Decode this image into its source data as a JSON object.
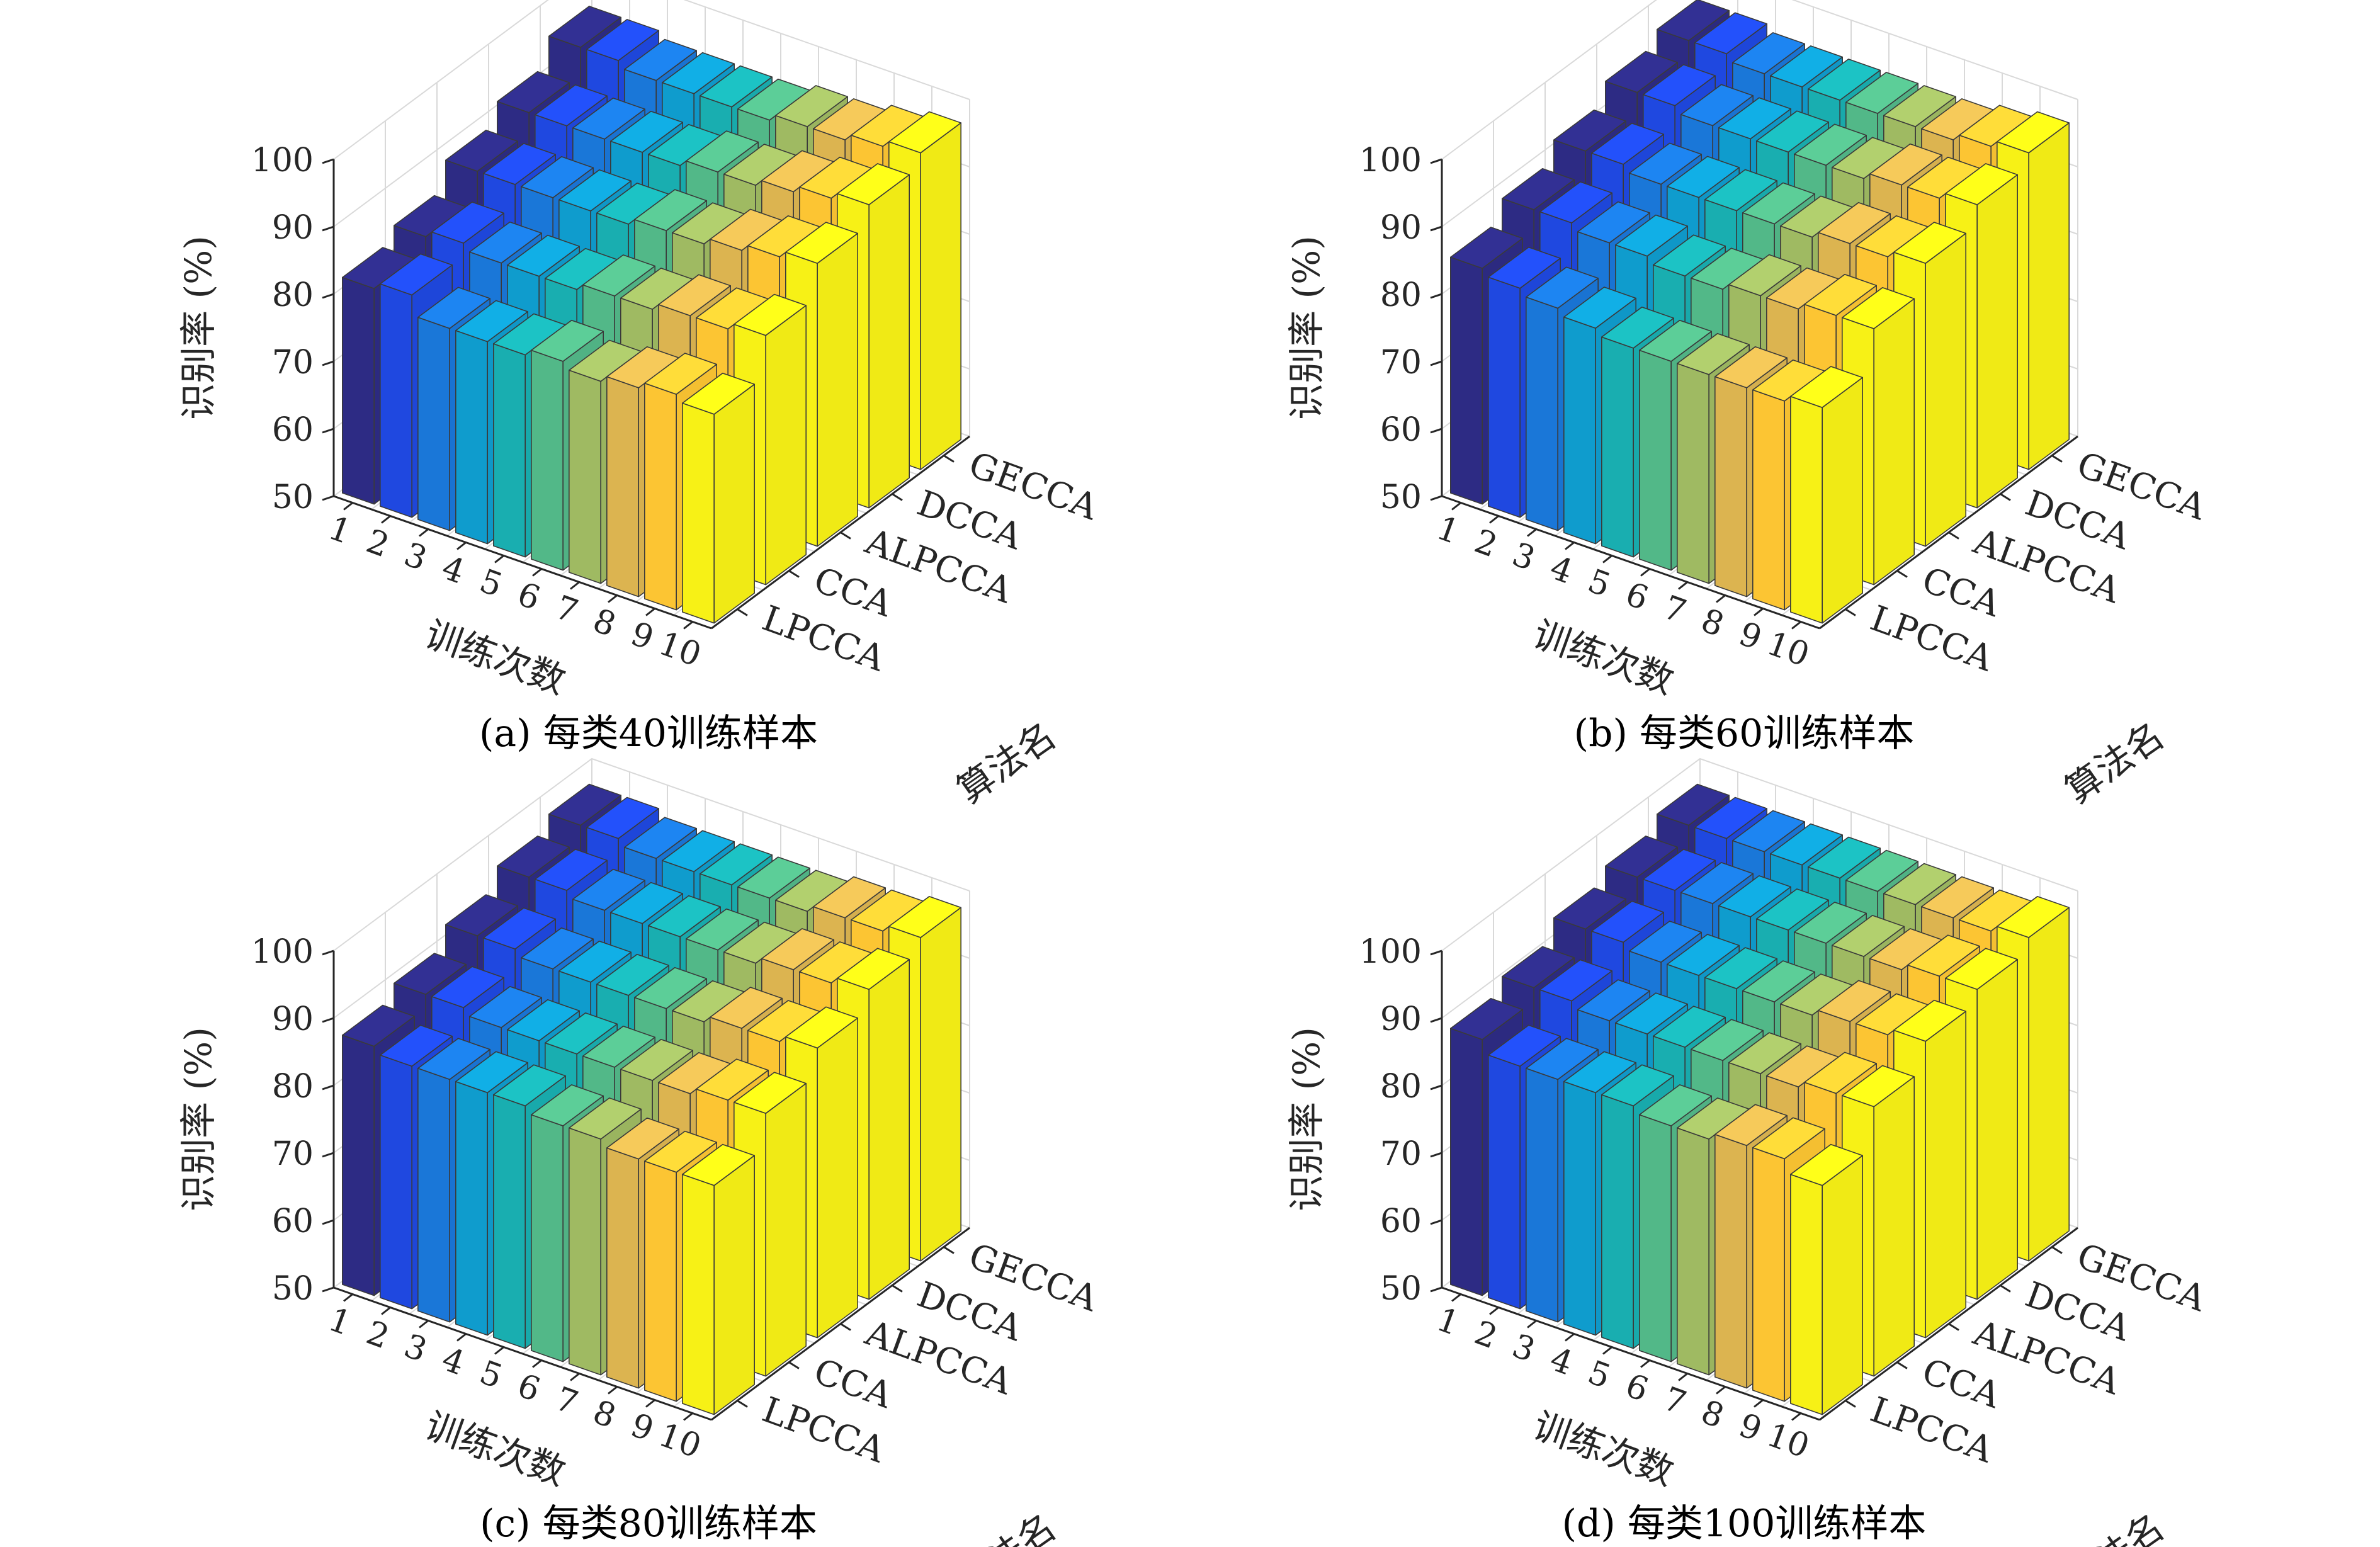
{
  "figure": {
    "background": "#ffffff"
  },
  "chart_data": [
    {
      "type": "bar3d",
      "caption": "(a) 每类40训练样本",
      "zlabel": "识别率 (%)",
      "xlabel": "训练次数",
      "ylabel": "算法名",
      "zlim": [
        50,
        100
      ],
      "zticks": [
        50,
        60,
        70,
        80,
        90,
        100
      ],
      "categories": [
        "1",
        "2",
        "3",
        "4",
        "5",
        "6",
        "7",
        "8",
        "9",
        "10"
      ],
      "series": [
        {
          "name": "LPCCA",
          "values": [
            82,
            83,
            80,
            80,
            80,
            81,
            80,
            81,
            82,
            81
          ]
        },
        {
          "name": "CCA",
          "values": [
            84,
            85,
            84,
            84,
            84,
            85,
            85,
            86,
            86,
            87
          ]
        },
        {
          "name": "ALPCCA",
          "values": [
            88,
            88,
            88,
            88,
            88,
            89,
            89,
            90,
            91,
            92
          ]
        },
        {
          "name": "DCCA",
          "values": [
            91,
            91,
            91,
            91,
            91,
            92,
            92,
            93,
            94,
            95
          ]
        },
        {
          "name": "GECCA",
          "values": [
            95,
            95,
            94,
            94,
            94,
            94,
            95,
            95,
            96,
            97
          ]
        }
      ]
    },
    {
      "type": "bar3d",
      "caption": "(b) 每类60训练样本",
      "zlabel": "识别率 (%)",
      "xlabel": "训练次数",
      "ylabel": "算法名",
      "zlim": [
        50,
        100
      ],
      "zticks": [
        50,
        60,
        70,
        80,
        90,
        100
      ],
      "categories": [
        "1",
        "2",
        "3",
        "4",
        "5",
        "6",
        "7",
        "8",
        "9",
        "10"
      ],
      "series": [
        {
          "name": "LPCCA",
          "values": [
            85,
            84,
            83,
            82,
            81,
            81,
            81,
            81,
            81,
            82
          ]
        },
        {
          "name": "CCA",
          "values": [
            88,
            88,
            87,
            87,
            86,
            86,
            87,
            87,
            88,
            88
          ]
        },
        {
          "name": "ALPCCA",
          "values": [
            91,
            91,
            90,
            90,
            90,
            90,
            90,
            91,
            91,
            92
          ]
        },
        {
          "name": "DCCA",
          "values": [
            94,
            94,
            93,
            93,
            93,
            93,
            93,
            94,
            94,
            95
          ]
        },
        {
          "name": "GECCA",
          "values": [
            96,
            96,
            95,
            95,
            95,
            95,
            95,
            95,
            96,
            97
          ]
        }
      ]
    },
    {
      "type": "bar3d",
      "caption": "(c) 每类80训练样本",
      "zlabel": "识别率 (%)",
      "xlabel": "训练次数",
      "ylabel": "算法名",
      "zlim": [
        50,
        100
      ],
      "zticks": [
        50,
        60,
        70,
        80,
        90,
        100
      ],
      "categories": [
        "1",
        "2",
        "3",
        "4",
        "5",
        "6",
        "7",
        "8",
        "9",
        "10"
      ],
      "series": [
        {
          "name": "LPCCA",
          "values": [
            87,
            86,
            86,
            86,
            86,
            85,
            85,
            84,
            84,
            84
          ]
        },
        {
          "name": "CCA",
          "values": [
            89,
            89,
            88,
            88,
            88,
            88,
            88,
            88,
            89,
            89
          ]
        },
        {
          "name": "ALPCCA",
          "values": [
            92,
            92,
            91,
            91,
            91,
            91,
            91,
            92,
            92,
            93
          ]
        },
        {
          "name": "DCCA",
          "values": [
            95,
            95,
            94,
            94,
            94,
            94,
            94,
            95,
            95,
            96
          ]
        },
        {
          "name": "GECCA",
          "values": [
            97,
            97,
            96,
            96,
            96,
            96,
            96,
            97,
            97,
            98
          ]
        }
      ]
    },
    {
      "type": "bar3d",
      "caption": "(d) 每类100训练样本",
      "zlabel": "识别率 (%)",
      "xlabel": "训练次数",
      "ylabel": "算法名",
      "zlim": [
        50,
        100
      ],
      "zticks": [
        50,
        60,
        70,
        80,
        90,
        100
      ],
      "categories": [
        "1",
        "2",
        "3",
        "4",
        "5",
        "6",
        "7",
        "8",
        "9",
        "10"
      ],
      "series": [
        {
          "name": "LPCCA",
          "values": [
            88,
            86,
            86,
            86,
            86,
            85,
            85,
            86,
            86,
            84
          ]
        },
        {
          "name": "CCA",
          "values": [
            90,
            90,
            89,
            89,
            89,
            89,
            89,
            89,
            90,
            90
          ]
        },
        {
          "name": "ALPCCA",
          "values": [
            93,
            93,
            92,
            92,
            92,
            92,
            92,
            93,
            93,
            94
          ]
        },
        {
          "name": "DCCA",
          "values": [
            95,
            95,
            95,
            95,
            95,
            95,
            95,
            95,
            96,
            96
          ]
        },
        {
          "name": "GECCA",
          "values": [
            97,
            97,
            97,
            97,
            97,
            97,
            97,
            97,
            97,
            98
          ]
        }
      ]
    }
  ],
  "colors": {
    "axis": "#262626",
    "grid": "#d9d9d9",
    "bar_edge": "#3a3a3a",
    "palette": [
      "#2d2b84",
      "#1f48e0",
      "#1a77d8",
      "#0f9ccd",
      "#19aeb0",
      "#52b888",
      "#9fba62",
      "#dcb450",
      "#fcc533",
      "#f7f116"
    ]
  }
}
